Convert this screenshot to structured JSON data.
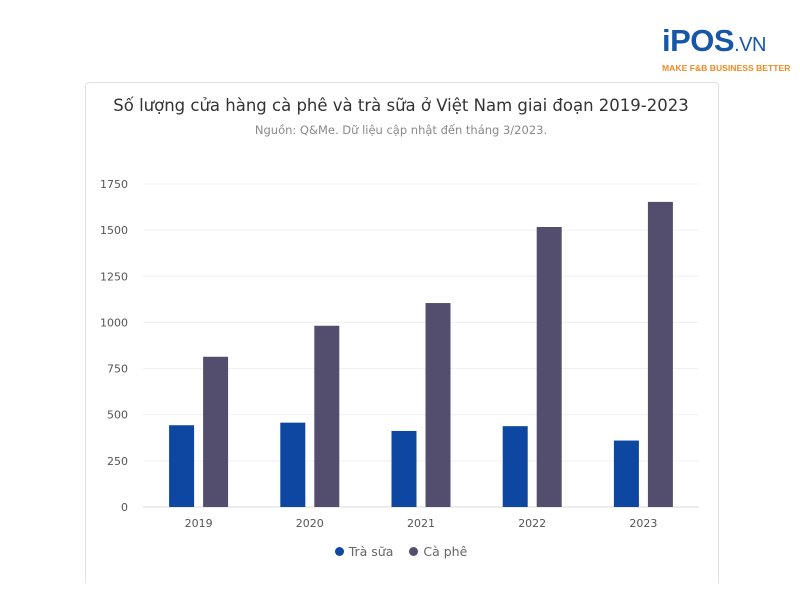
{
  "logo": {
    "brand": "iPOS",
    "domain": ".VN",
    "tagline": "MAKE F&B BUSINESS BETTER",
    "brand_color": "#1657a8",
    "tagline_color": "#f08a24"
  },
  "chart_data": {
    "type": "bar",
    "title": "Số lượng cửa hàng cà phê và trà sữa ở Việt Nam giai đoạn 2019-2023",
    "subtitle": "Nguồn: Q&Me. Dữ liệu cập nhật đến tháng 3/2023.",
    "categories": [
      "2019",
      "2020",
      "2021",
      "2022",
      "2023"
    ],
    "series": [
      {
        "name": "Trà sữa",
        "color": "#0d47a1",
        "values": [
          443,
          457,
          412,
          438,
          360
        ]
      },
      {
        "name": "Cà phê",
        "color": "#544e6e",
        "values": [
          814,
          982,
          1105,
          1517,
          1653
        ]
      }
    ],
    "yticks": [
      "0",
      "250",
      "500",
      "750",
      "1000",
      "1250",
      "1500",
      "1750"
    ],
    "ylim": [
      0,
      1750
    ],
    "grid": true,
    "legend": "bottom"
  }
}
